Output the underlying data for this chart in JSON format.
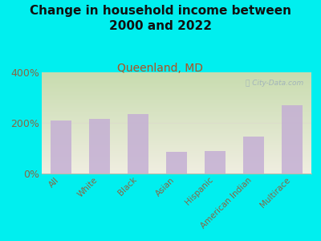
{
  "title": "Change in household income between\n2000 and 2022",
  "subtitle": "Queenland, MD",
  "watermark": "ⓘ City-Data.com",
  "categories": [
    "All",
    "White",
    "Black",
    "Asian",
    "Hispanic",
    "American Indian",
    "Multirace"
  ],
  "values": [
    210,
    215,
    235,
    85,
    90,
    145,
    270
  ],
  "bar_color": "#c4afd4",
  "background_color": "#00EFEF",
  "plot_bg_color_topleft": "#c8ddb0",
  "plot_bg_color_topright": "#e8f0d0",
  "plot_bg_color_bottom": "#f0efe0",
  "ylabel_ticks": [
    "0%",
    "200%",
    "400%"
  ],
  "ytick_vals": [
    0,
    200,
    400
  ],
  "ylim": [
    0,
    400
  ],
  "title_fontsize": 11,
  "subtitle_fontsize": 10,
  "subtitle_color": "#b05020",
  "tick_color": "#886644",
  "watermark_color": "#99aabb",
  "hline_color": "#ddddcc"
}
